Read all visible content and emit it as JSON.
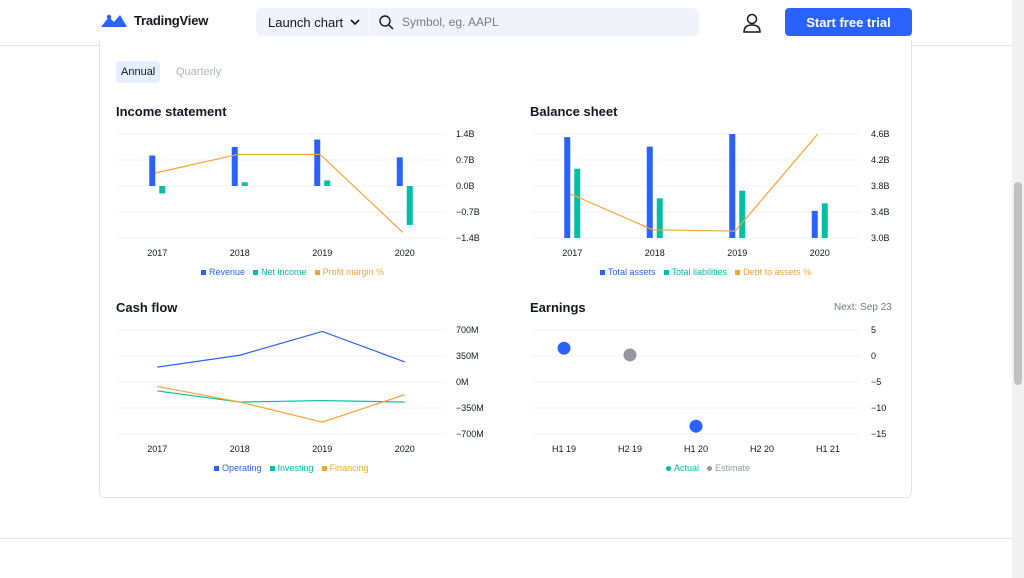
{
  "header": {
    "logo_text": "TradingView",
    "launch_label": "Launch chart",
    "search_placeholder": "Symbol, eg. AAPL",
    "trial_label": "Start free trial"
  },
  "periods": {
    "annual": "Annual",
    "quarterly": "Quarterly",
    "selected": "Annual"
  },
  "colors": {
    "blue": "#2962ff",
    "teal": "#00bfa5",
    "orange": "#f7a531",
    "gray": "#9598a1"
  },
  "income": {
    "title": "Income statement",
    "legend": [
      "Revenue",
      "Net income",
      "Profit margin %"
    ]
  },
  "balance": {
    "title": "Balance sheet",
    "legend": [
      "Total assets",
      "Total liabilities",
      "Debt to assets %"
    ]
  },
  "cashflow": {
    "title": "Cash flow",
    "legend": [
      "Operating",
      "Investing",
      "Financing"
    ]
  },
  "earnings": {
    "title": "Earnings",
    "next": "Next: Sep 23",
    "legend": [
      "Actual",
      "Estimate"
    ]
  },
  "chart_data": [
    {
      "type": "bar",
      "title": "Income statement",
      "categories": [
        "2017",
        "2018",
        "2019",
        "2020"
      ],
      "y_ticks": [
        "1.4B",
        "0.7B",
        "0.0B",
        "−0.7B",
        "−1.4B"
      ],
      "ylim": [
        -1.4,
        1.4
      ],
      "series": [
        {
          "name": "Revenue",
          "kind": "bar",
          "values": [
            0.82,
            1.05,
            1.25,
            0.77
          ]
        },
        {
          "name": "Net income",
          "kind": "bar",
          "values": [
            -0.2,
            0.1,
            0.15,
            -1.05
          ]
        },
        {
          "name": "Profit margin %",
          "kind": "line",
          "values": [
            0.35,
            0.85,
            0.85,
            -1.25
          ]
        }
      ]
    },
    {
      "type": "bar",
      "title": "Balance sheet",
      "categories": [
        "2017",
        "2018",
        "2019",
        "2020"
      ],
      "y_ticks": [
        "4.6B",
        "4.2B",
        "3.8B",
        "3.4B",
        "3.0B"
      ],
      "ylim": [
        2.95,
        4.6
      ],
      "series": [
        {
          "name": "Total assets",
          "kind": "bar",
          "values": [
            4.55,
            4.4,
            4.6,
            3.38
          ]
        },
        {
          "name": "Total liabilities",
          "kind": "bar",
          "values": [
            4.05,
            3.58,
            3.7,
            3.5
          ]
        },
        {
          "name": "Debt to assets %",
          "kind": "line",
          "values": [
            3.65,
            3.08,
            3.06,
            4.6
          ]
        }
      ]
    },
    {
      "type": "line",
      "title": "Cash flow",
      "categories": [
        "2017",
        "2018",
        "2019",
        "2020"
      ],
      "y_ticks": [
        "700M",
        "350M",
        "0M",
        "−350M",
        "−700M"
      ],
      "ylim": [
        -700,
        700
      ],
      "series": [
        {
          "name": "Operating",
          "values": [
            200,
            360,
            680,
            270
          ]
        },
        {
          "name": "Investing",
          "values": [
            -120,
            -270,
            -250,
            -270
          ]
        },
        {
          "name": "Financing",
          "values": [
            -60,
            -270,
            -540,
            -170
          ]
        }
      ]
    },
    {
      "type": "scatter",
      "title": "Earnings",
      "categories": [
        "H1 19",
        "H2 19",
        "H1 20",
        "H2 20",
        "H1 21"
      ],
      "y_ticks": [
        "5",
        "0",
        "−5",
        "−10",
        "−15"
      ],
      "ylim": [
        -15,
        5
      ],
      "series": [
        {
          "name": "Actual",
          "values": [
            1.5,
            null,
            -13.5,
            null,
            null
          ]
        },
        {
          "name": "Estimate",
          "values": [
            null,
            0.2,
            null,
            null,
            null
          ]
        }
      ]
    }
  ]
}
